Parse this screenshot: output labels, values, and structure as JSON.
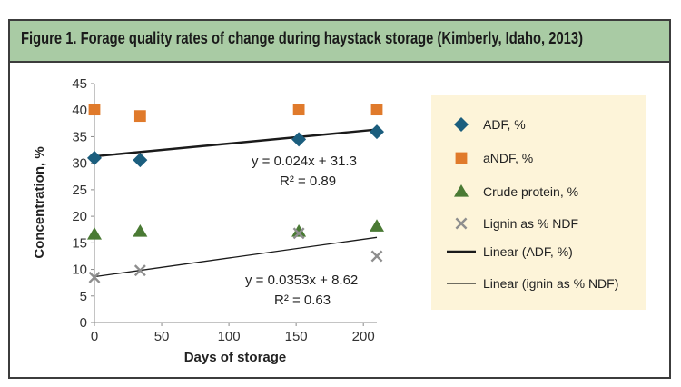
{
  "title": "Figure 1. Forage quality rates of change during haystack storage (Kimberly, Idaho, 2013)",
  "colors": {
    "title_bg": "#a9cba4",
    "legend_bg": "#fdf4d9",
    "adf": "#1b5e7e",
    "andf": "#e07a2b",
    "crude_protein": "#4a7a34",
    "lignin": "#8e8e8e",
    "trend": "#1a1a1a"
  },
  "chart_data": {
    "type": "scatter",
    "xlabel": "Days of storage",
    "ylabel": "Concentration, %",
    "xlim": [
      0,
      210
    ],
    "ylim": [
      0,
      45
    ],
    "xticks": [
      "0",
      "50",
      "100",
      "150",
      "200"
    ],
    "yticks": [
      "0",
      "5",
      "10",
      "15",
      "20",
      "25",
      "30",
      "35",
      "40",
      "45"
    ],
    "grid": false,
    "legend_position": "right",
    "series": [
      {
        "name": "ADF, %",
        "marker": "diamond",
        "x": [
          0,
          34,
          152,
          210
        ],
        "y": [
          31,
          30.6,
          34.5,
          35.9
        ]
      },
      {
        "name": "aNDF, %",
        "marker": "square",
        "x": [
          0,
          34,
          152,
          210
        ],
        "y": [
          40.1,
          38.9,
          40.1,
          40.1
        ]
      },
      {
        "name": "Crude protein, %",
        "marker": "triangle",
        "x": [
          0,
          34,
          152,
          210
        ],
        "y": [
          16.6,
          17.1,
          17.1,
          18.1
        ]
      },
      {
        "name": "Lignin as % NDF",
        "marker": "x",
        "x": [
          0,
          34,
          152,
          210
        ],
        "y": [
          8.5,
          9.8,
          16.8,
          12.5
        ]
      }
    ],
    "trendlines": [
      {
        "name": "Linear (ADF, %)",
        "slope": 0.024,
        "intercept": 31.3,
        "width": "thick",
        "equation": "y = 0.024x + 31.3",
        "r2_label": "R² = 0.89"
      },
      {
        "name": "Linear (ignin as % NDF)",
        "slope": 0.0353,
        "intercept": 8.62,
        "width": "thin",
        "equation": "y = 0.0353x + 8.62",
        "r2_label": "R² = 0.63"
      }
    ]
  }
}
